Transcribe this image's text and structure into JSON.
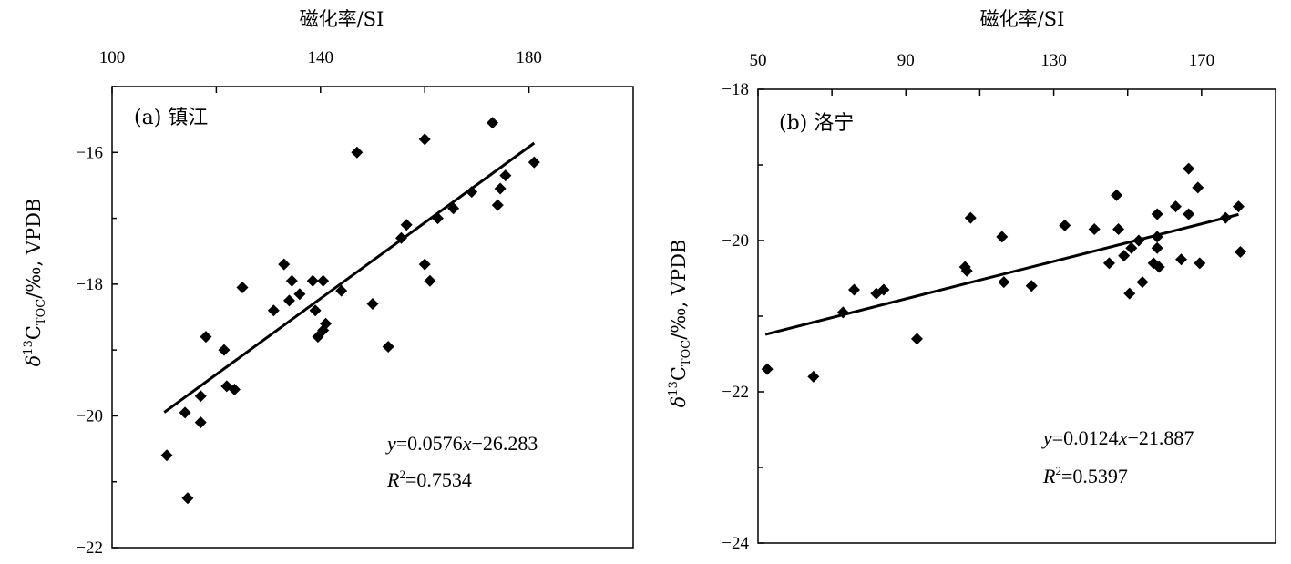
{
  "chart_data": [
    {
      "type": "scatter",
      "panel_label": "(a) 镇江",
      "xlabel": "磁化率/SI",
      "ylabel": {
        "prefix": "δ",
        "sup": "13",
        "base": "C",
        "sub": "TOC",
        "suffix": "/‰, VPDB"
      },
      "xlim": [
        100,
        200
      ],
      "ylim": [
        -22,
        -15
      ],
      "xticks": [
        100,
        140,
        180
      ],
      "xtick_labels": [
        "100",
        "140",
        "180"
      ],
      "yticks": [
        -16,
        -18,
        -20,
        -22
      ],
      "ytick_labels": [
        "−16",
        "−18",
        "−20",
        "−22"
      ],
      "equation": {
        "y": "y",
        "eq": "=0.0576",
        "x": "x",
        "rest": "−26.283"
      },
      "r2": {
        "r": "R",
        "sup": "2",
        "rest": "=0.7534"
      },
      "fit": {
        "slope": 0.0576,
        "intercept": -26.283,
        "x_range": [
          110,
          181
        ]
      },
      "points": [
        {
          "x": 110.5,
          "y": -20.6
        },
        {
          "x": 114.0,
          "y": -19.95
        },
        {
          "x": 114.5,
          "y": -21.25
        },
        {
          "x": 117.0,
          "y": -20.1
        },
        {
          "x": 117.0,
          "y": -19.7
        },
        {
          "x": 118.0,
          "y": -18.8
        },
        {
          "x": 121.5,
          "y": -19.0
        },
        {
          "x": 122.0,
          "y": -19.55
        },
        {
          "x": 123.5,
          "y": -19.6
        },
        {
          "x": 125.0,
          "y": -18.05
        },
        {
          "x": 131.0,
          "y": -18.4
        },
        {
          "x": 133.0,
          "y": -17.7
        },
        {
          "x": 134.0,
          "y": -18.25
        },
        {
          "x": 134.5,
          "y": -17.95
        },
        {
          "x": 136.0,
          "y": -18.15
        },
        {
          "x": 138.5,
          "y": -17.95
        },
        {
          "x": 139.0,
          "y": -18.4
        },
        {
          "x": 139.5,
          "y": -18.8
        },
        {
          "x": 140.5,
          "y": -17.95
        },
        {
          "x": 141.0,
          "y": -18.6
        },
        {
          "x": 140.5,
          "y": -18.7
        },
        {
          "x": 144.0,
          "y": -18.1
        },
        {
          "x": 147.0,
          "y": -16.0
        },
        {
          "x": 150.0,
          "y": -18.3
        },
        {
          "x": 153.0,
          "y": -18.95
        },
        {
          "x": 155.5,
          "y": -17.3
        },
        {
          "x": 156.5,
          "y": -17.1
        },
        {
          "x": 160.0,
          "y": -15.8
        },
        {
          "x": 160.0,
          "y": -17.7
        },
        {
          "x": 161.0,
          "y": -17.95
        },
        {
          "x": 162.5,
          "y": -17.0
        },
        {
          "x": 165.5,
          "y": -16.85
        },
        {
          "x": 169.0,
          "y": -16.6
        },
        {
          "x": 173.0,
          "y": -15.55
        },
        {
          "x": 174.0,
          "y": -16.8
        },
        {
          "x": 174.5,
          "y": -16.55
        },
        {
          "x": 175.5,
          "y": -16.35
        },
        {
          "x": 181.0,
          "y": -16.15
        }
      ]
    },
    {
      "type": "scatter",
      "panel_label": "(b) 洛宁",
      "xlabel": "磁化率/SI",
      "ylabel": {
        "prefix": "δ",
        "sup": "13",
        "base": "C",
        "sub": "TOC",
        "suffix": "/‰, VPDB"
      },
      "xlim": [
        50,
        190
      ],
      "ylim": [
        -24,
        -18
      ],
      "xticks": [
        50,
        90,
        130,
        170
      ],
      "xtick_labels": [
        "50",
        "90",
        "130",
        "170"
      ],
      "yticks": [
        -18,
        -20,
        -22,
        -24
      ],
      "ytick_labels": [
        "−18",
        "−20",
        "−22",
        "−24"
      ],
      "equation": {
        "y": "y",
        "eq": "=0.0124",
        "x": "x",
        "rest": "−21.887"
      },
      "r2": {
        "r": "R",
        "sup": "2",
        "rest": "=0.5397"
      },
      "fit": {
        "slope": 0.0124,
        "intercept": -21.887,
        "x_range": [
          52,
          180
        ]
      },
      "points": [
        {
          "x": 52.5,
          "y": -21.7
        },
        {
          "x": 65.0,
          "y": -21.8
        },
        {
          "x": 73.0,
          "y": -20.95
        },
        {
          "x": 76.0,
          "y": -20.65
        },
        {
          "x": 82.0,
          "y": -20.7
        },
        {
          "x": 84.0,
          "y": -20.65
        },
        {
          "x": 93.0,
          "y": -21.3
        },
        {
          "x": 106.0,
          "y": -20.35
        },
        {
          "x": 106.5,
          "y": -20.4
        },
        {
          "x": 107.5,
          "y": -19.7
        },
        {
          "x": 116.0,
          "y": -19.95
        },
        {
          "x": 116.5,
          "y": -20.55
        },
        {
          "x": 124.0,
          "y": -20.6
        },
        {
          "x": 133.0,
          "y": -19.8
        },
        {
          "x": 141.0,
          "y": -19.85
        },
        {
          "x": 145.0,
          "y": -20.3
        },
        {
          "x": 147.0,
          "y": -19.4
        },
        {
          "x": 147.5,
          "y": -19.85
        },
        {
          "x": 149.0,
          "y": -20.2
        },
        {
          "x": 150.5,
          "y": -20.7
        },
        {
          "x": 151.0,
          "y": -20.1
        },
        {
          "x": 153.0,
          "y": -20.0
        },
        {
          "x": 154.0,
          "y": -20.55
        },
        {
          "x": 157.0,
          "y": -20.3
        },
        {
          "x": 158.0,
          "y": -19.95
        },
        {
          "x": 158.0,
          "y": -20.1
        },
        {
          "x": 158.5,
          "y": -20.35
        },
        {
          "x": 158.0,
          "y": -19.65
        },
        {
          "x": 163.0,
          "y": -19.55
        },
        {
          "x": 164.5,
          "y": -20.25
        },
        {
          "x": 166.5,
          "y": -19.05
        },
        {
          "x": 166.5,
          "y": -19.65
        },
        {
          "x": 169.0,
          "y": -19.3
        },
        {
          "x": 169.5,
          "y": -20.3
        },
        {
          "x": 176.5,
          "y": -19.7
        },
        {
          "x": 180.0,
          "y": -19.55
        },
        {
          "x": 180.5,
          "y": -20.15
        }
      ]
    }
  ]
}
